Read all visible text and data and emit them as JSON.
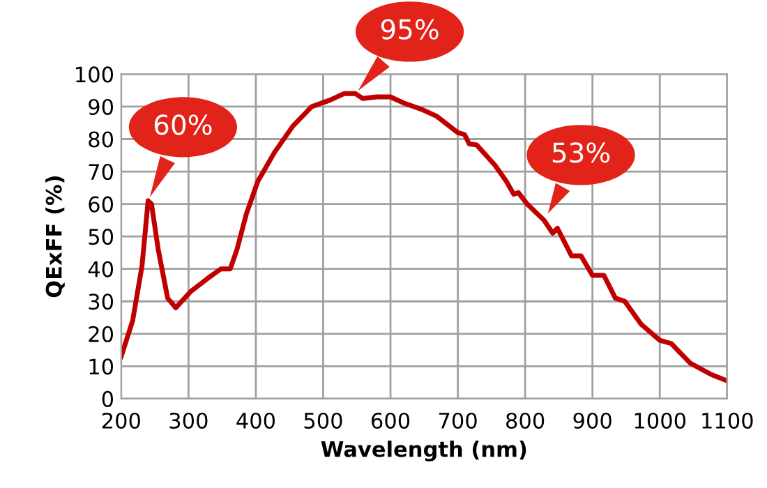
{
  "chart_data": {
    "type": "line",
    "xlabel": "Wavelength (nm)",
    "ylabel": "QExFF (%)",
    "x": [
      200,
      217,
      231,
      240,
      245,
      255,
      269,
      281,
      303,
      328,
      348,
      362,
      372,
      386,
      403,
      428,
      455,
      483,
      510,
      531,
      548,
      559,
      579,
      600,
      621,
      648,
      669,
      700,
      710,
      717,
      728,
      755,
      772,
      783,
      790,
      803,
      828,
      841,
      848,
      869,
      883,
      900,
      917,
      934,
      948,
      972,
      1000,
      1017,
      1045,
      1076,
      1100
    ],
    "series": [
      {
        "color": "#c00000",
        "values": [
          13,
          24,
          41,
          61,
          60,
          46,
          31,
          28,
          33,
          37,
          40,
          40,
          46,
          57,
          67,
          76,
          84,
          90,
          92,
          94,
          94,
          92.5,
          93,
          93,
          91,
          89,
          87,
          82,
          81.4,
          78.5,
          78.2,
          72,
          67,
          63,
          63.5,
          60,
          55,
          51,
          52.5,
          44,
          44,
          38,
          38,
          31,
          30,
          23,
          18,
          17,
          11,
          7.5,
          5.5
        ]
      }
    ],
    "xlim": [
      200,
      1100
    ],
    "ylim": [
      0,
      100
    ],
    "xticks": [
      200,
      300,
      400,
      500,
      600,
      700,
      800,
      900,
      1000,
      1100
    ],
    "yticks": [
      0,
      10,
      20,
      30,
      40,
      50,
      60,
      70,
      80,
      90,
      100
    ],
    "grid": true,
    "legend": false,
    "marker": "none",
    "line_style": "solid",
    "annotations": [
      {
        "text": "60%",
        "x": 240,
        "y": 61
      },
      {
        "text": "95%",
        "x": 548,
        "y": 94
      },
      {
        "text": "53%",
        "x": 831,
        "y": 56
      }
    ]
  }
}
